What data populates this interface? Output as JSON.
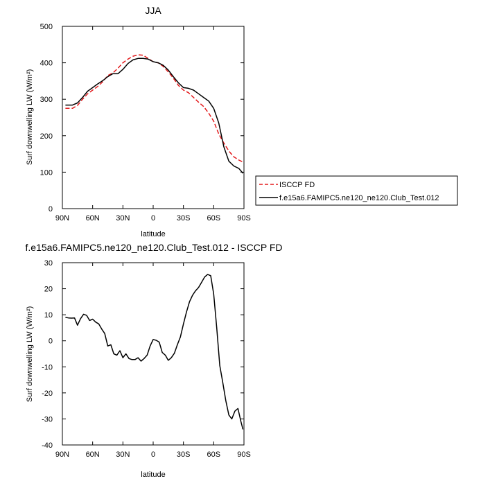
{
  "chart_data": [
    {
      "type": "line",
      "title": "JJA",
      "xlabel": "latitude",
      "ylabel": "Surf downwelling LW (W/m²)",
      "xlim": [
        90,
        -90
      ],
      "ylim": [
        0,
        500
      ],
      "xticks": [
        90,
        60,
        30,
        0,
        -30,
        -60,
        -90
      ],
      "xtick_labels": [
        "90N",
        "60N",
        "30N",
        "0",
        "30S",
        "60S",
        "90S"
      ],
      "yticks": [
        0,
        100,
        200,
        300,
        400,
        500
      ],
      "ytick_labels": [
        "0",
        "100",
        "200",
        "300",
        "400",
        "500"
      ],
      "grid": false,
      "legend": "right",
      "series": [
        {
          "name": "ISCCP FD",
          "color": "#e31a1c",
          "dash": "dashed",
          "x": [
            87,
            80,
            75,
            70,
            65,
            60,
            55,
            50,
            45,
            40,
            35,
            30,
            25,
            20,
            15,
            10,
            5,
            0,
            -5,
            -10,
            -15,
            -20,
            -25,
            -30,
            -35,
            -40,
            -45,
            -50,
            -55,
            -60,
            -65,
            -70,
            -75,
            -80,
            -85,
            -89
          ],
          "y": [
            275,
            275,
            283,
            300,
            315,
            325,
            335,
            348,
            365,
            372,
            385,
            400,
            410,
            418,
            422,
            421,
            412,
            403,
            400,
            390,
            375,
            358,
            338,
            325,
            318,
            305,
            292,
            280,
            262,
            240,
            205,
            180,
            158,
            142,
            133,
            128
          ]
        },
        {
          "name": "f.e15a6.FAMIPC5.ne120_ne120.Club_Test.012",
          "color": "#000000",
          "dash": "solid",
          "x": [
            87,
            80,
            75,
            70,
            65,
            60,
            55,
            50,
            45,
            40,
            35,
            30,
            25,
            20,
            15,
            10,
            5,
            0,
            -5,
            -10,
            -15,
            -20,
            -25,
            -30,
            -35,
            -40,
            -45,
            -50,
            -55,
            -60,
            -65,
            -70,
            -75,
            -80,
            -85,
            -89
          ],
          "y": [
            284,
            284,
            290,
            305,
            322,
            332,
            342,
            351,
            362,
            370,
            370,
            382,
            398,
            408,
            412,
            412,
            410,
            403,
            400,
            393,
            380,
            362,
            345,
            332,
            330,
            325,
            315,
            305,
            295,
            275,
            235,
            170,
            130,
            117,
            110,
            97
          ]
        }
      ]
    },
    {
      "type": "line",
      "title": "f.e15a6.FAMIPC5.ne120_ne120.Club_Test.012 - ISCCP FD",
      "xlabel": "latitude",
      "ylabel": "Surf downwelling LW (W/m²)",
      "xlim": [
        90,
        -90
      ],
      "ylim": [
        -40,
        30
      ],
      "xticks": [
        90,
        60,
        30,
        0,
        -30,
        -60,
        -90
      ],
      "xtick_labels": [
        "90N",
        "60N",
        "30N",
        "0",
        "30S",
        "60S",
        "90S"
      ],
      "yticks": [
        -40,
        -30,
        -20,
        -10,
        0,
        10,
        20,
        30
      ],
      "ytick_labels": [
        "-40",
        "-30",
        "-20",
        "-10",
        "0",
        "10",
        "20",
        "30"
      ],
      "grid": false,
      "series": [
        {
          "color": "#000000",
          "dash": "solid",
          "x": [
            87,
            84,
            81,
            78,
            75,
            72,
            69,
            66,
            63,
            60,
            57,
            54,
            51,
            48,
            45,
            42,
            39,
            36,
            33,
            30,
            27,
            24,
            21,
            18,
            15,
            12,
            9,
            6,
            3,
            0,
            -3,
            -6,
            -9,
            -12,
            -15,
            -18,
            -21,
            -24,
            -27,
            -30,
            -33,
            -36,
            -39,
            -42,
            -45,
            -48,
            -51,
            -54,
            -57,
            -60,
            -63,
            -66,
            -69,
            -72,
            -75,
            -78,
            -81,
            -84,
            -87,
            -89
          ],
          "y": [
            9,
            8.8,
            8.7,
            8.8,
            6,
            8.5,
            10.2,
            9.8,
            7.8,
            8.3,
            7.2,
            6.5,
            4.5,
            2.8,
            -2,
            -1.5,
            -5,
            -5.5,
            -3.8,
            -6.5,
            -5,
            -6.8,
            -7.2,
            -7.2,
            -6.5,
            -7.8,
            -6.8,
            -5.5,
            -2,
            0.5,
            0.2,
            -0.5,
            -4.5,
            -5.5,
            -7.5,
            -6.5,
            -4.8,
            -1.5,
            1.5,
            6.5,
            11,
            15,
            17.5,
            19.2,
            20.5,
            22.5,
            24.5,
            25.5,
            25,
            18,
            5,
            -9.5,
            -16,
            -23,
            -28.5,
            -30,
            -27,
            -26,
            -31,
            -34
          ]
        }
      ]
    }
  ]
}
